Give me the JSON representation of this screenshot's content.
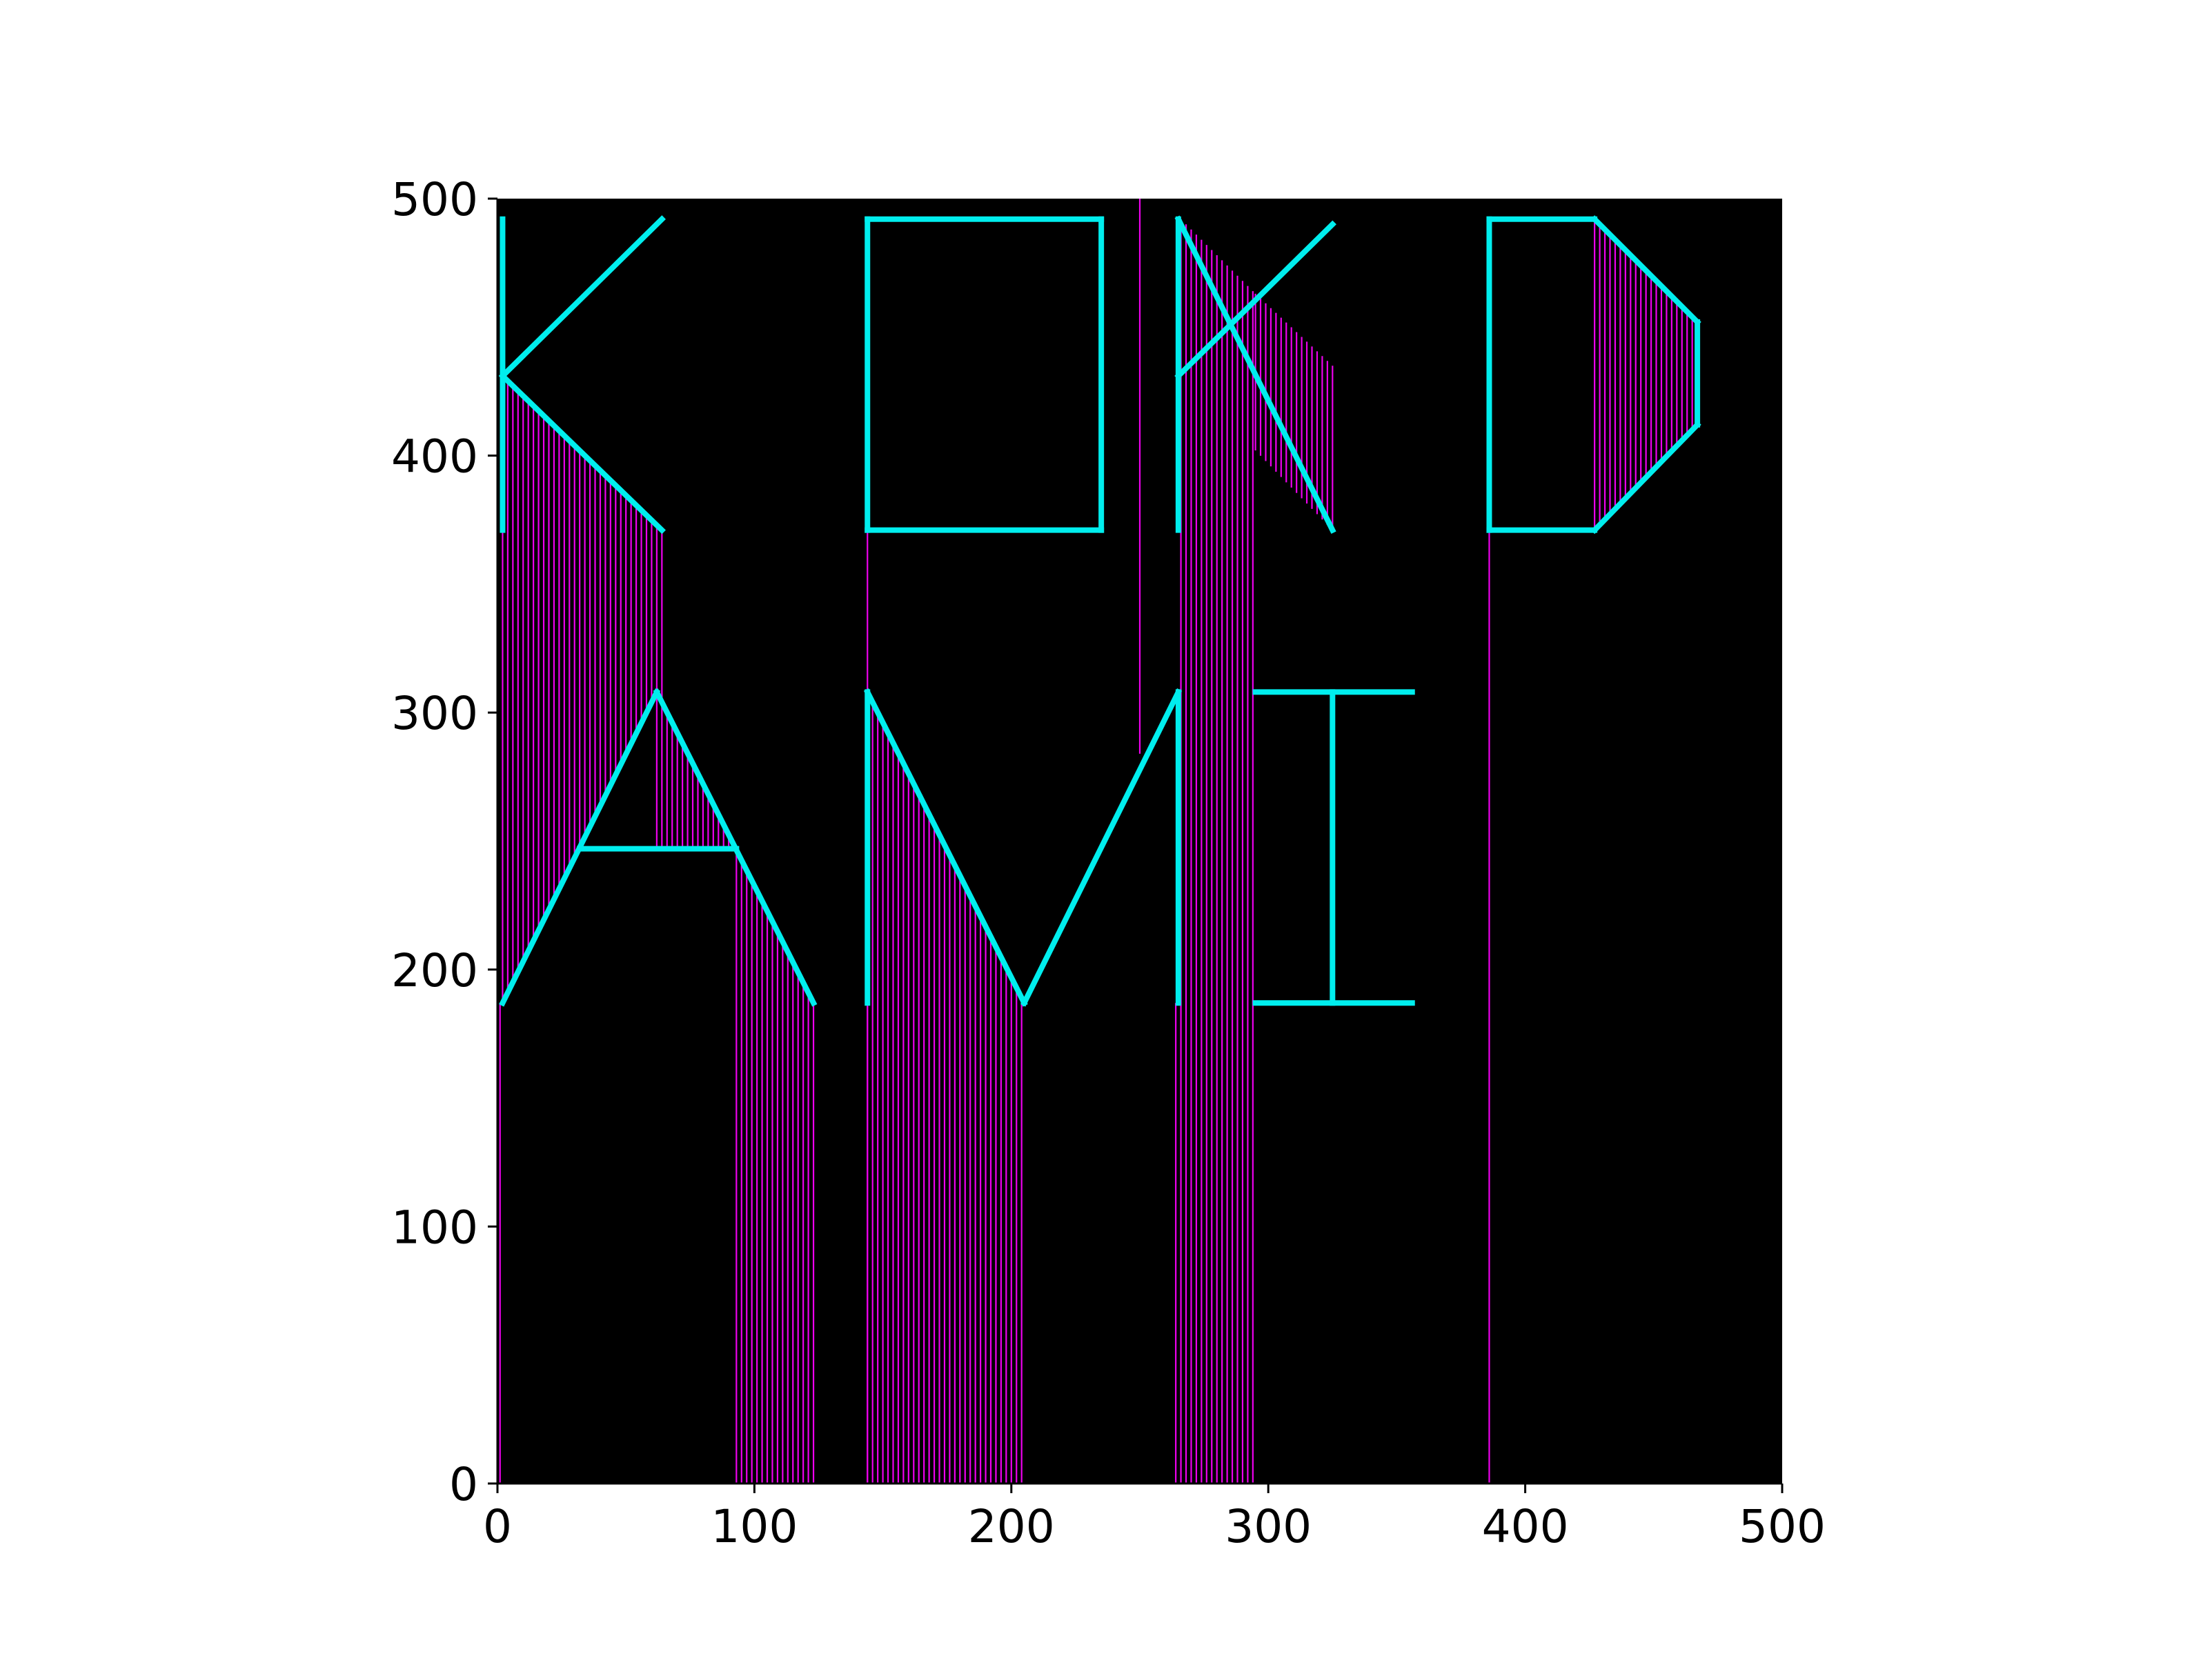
{
  "chart_data": {
    "type": "line",
    "title": "",
    "xlabel": "",
    "ylabel": "",
    "xlim": [
      0,
      500
    ],
    "ylim": [
      0,
      500
    ],
    "xticks": [
      "0",
      "100",
      "200",
      "300",
      "400",
      "500"
    ],
    "yticks": [
      "0",
      "100",
      "200",
      "300",
      "400",
      "500"
    ],
    "grid": false,
    "background": "#000000",
    "colors": {
      "outline": "#00eeee",
      "hatch": "#ee00ee",
      "axes_bg": "#000000"
    },
    "outline_segments": [
      [
        [
          2,
          492
        ],
        [
          2,
          371
        ]
      ],
      [
        [
          2,
          431
        ],
        [
          64,
          492
        ]
      ],
      [
        [
          2,
          431
        ],
        [
          64,
          371
        ]
      ],
      [
        [
          2,
          187
        ],
        [
          62,
          308
        ]
      ],
      [
        [
          62,
          308
        ],
        [
          123,
          187
        ]
      ],
      [
        [
          32,
          247
        ],
        [
          93,
          247
        ]
      ],
      [
        [
          144,
          371
        ],
        [
          144,
          492
        ]
      ],
      [
        [
          144,
          492
        ],
        [
          235,
          492
        ]
      ],
      [
        [
          235,
          492
        ],
        [
          235,
          371
        ]
      ],
      [
        [
          235,
          371
        ],
        [
          144,
          371
        ]
      ],
      [
        [
          265,
          371
        ],
        [
          265,
          492
        ]
      ],
      [
        [
          265,
          431
        ],
        [
          325,
          490
        ]
      ],
      [
        [
          265,
          492
        ],
        [
          325,
          371
        ]
      ],
      [
        [
          144,
          187
        ],
        [
          144,
          308
        ]
      ],
      [
        [
          144,
          308
        ],
        [
          205,
          187
        ]
      ],
      [
        [
          205,
          187
        ],
        [
          265,
          308
        ]
      ],
      [
        [
          265,
          308
        ],
        [
          265,
          187
        ]
      ],
      [
        [
          295,
          308
        ],
        [
          356,
          308
        ]
      ],
      [
        [
          325,
          308
        ],
        [
          325,
          187
        ]
      ],
      [
        [
          295,
          187
        ],
        [
          356,
          187
        ]
      ],
      [
        [
          386,
          371
        ],
        [
          386,
          492
        ]
      ],
      [
        [
          386,
          492
        ],
        [
          427,
          492
        ]
      ],
      [
        [
          427,
          492
        ],
        [
          467,
          452
        ]
      ],
      [
        [
          467,
          452
        ],
        [
          467,
          412
        ]
      ],
      [
        [
          467,
          412
        ],
        [
          427,
          371
        ]
      ],
      [
        [
          427,
          371
        ],
        [
          386,
          371
        ]
      ]
    ],
    "hatch_regions": [
      {
        "x": [
          2,
          64
        ],
        "top": [
          [
            2,
            431
          ],
          [
            64,
            371
          ]
        ],
        "bottom": [
          [
            2,
            187
          ],
          [
            62,
            308
          ],
          [
            64,
            304
          ]
        ]
      },
      {
        "x": [
          62,
          93
        ],
        "top": [
          [
            62,
            308
          ],
          [
            93,
            247
          ]
        ],
        "bottom": [
          [
            62,
            247
          ],
          [
            93,
            247
          ]
        ]
      },
      {
        "x": [
          93,
          123
        ],
        "top": [
          [
            93,
            247
          ],
          [
            123,
            187
          ]
        ],
        "bottom": [
          [
            93,
            0
          ],
          [
            123,
            0
          ]
        ]
      },
      {
        "x": [
          144,
          205
        ],
        "top": [
          [
            144,
            308
          ],
          [
            205,
            187
          ]
        ],
        "bottom": [
          [
            144,
            0
          ],
          [
            205,
            0
          ]
        ]
      },
      {
        "x": [
          266,
          295
        ],
        "top": [
          [
            266,
            492
          ],
          [
            295,
            463
          ]
        ],
        "bottom": [
          [
            266,
            0
          ],
          [
            295,
            0
          ]
        ]
      },
      {
        "x": [
          295,
          325
        ],
        "top": [
          [
            295,
            463
          ],
          [
            325,
            435
          ]
        ],
        "bottom": [
          [
            295,
            402
          ],
          [
            325,
            371
          ]
        ]
      },
      {
        "x": [
          427,
          467
        ],
        "top": [
          [
            427,
            492
          ],
          [
            467,
            452
          ]
        ],
        "bottom": [
          [
            427,
            371
          ],
          [
            467,
            412
          ]
        ]
      }
    ],
    "single_vertical_lines": [
      {
        "x": 1,
        "from": 0,
        "to": 187
      },
      {
        "x": 144,
        "from": 0,
        "to": 371
      },
      {
        "x": 250,
        "from": 284,
        "to": 500
      },
      {
        "x": 264,
        "from": 0,
        "to": 187
      },
      {
        "x": 386,
        "from": 0,
        "to": 371
      }
    ]
  }
}
